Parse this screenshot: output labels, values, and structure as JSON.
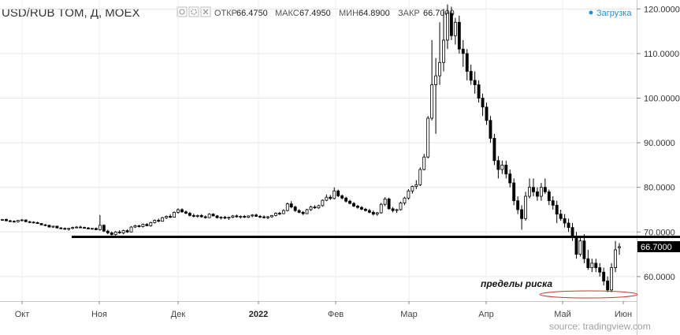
{
  "header": {
    "title": "USD/RUB TOM, Д, MOEX",
    "open_label": "ОТКР",
    "open_value": "66.4750",
    "high_label": "МАКС",
    "high_value": "67.4950",
    "low_label": "МИН",
    "low_value": "64.8900",
    "close_label": "ЗАКР",
    "close_value": "66.7000",
    "loading_text": "Загрузка",
    "icons": [
      "eye-icon",
      "settings-icon",
      "close-icon"
    ]
  },
  "annotation": {
    "text": "пределы риска"
  },
  "source_text": "source: tradingview.com",
  "colors": {
    "up": "#ffffff",
    "down": "#000000",
    "wick": "#000000",
    "risk_ellipse": "#c0392b",
    "level_line": "#000000",
    "last_price_label": "#000000"
  },
  "chart_data": {
    "type": "candlestick",
    "yticks": [
      "120.0000",
      "110.0000",
      "100.0000",
      "90.0000",
      "80.0000",
      "70.0000",
      "60.0000"
    ],
    "ylim": [
      54.5,
      122
    ],
    "xticks": [
      "Окт",
      "Ноя",
      "Дек",
      "2022",
      "Фев",
      "Мар",
      "Апр",
      "Май",
      "Июн"
    ],
    "xticks_bold": [
      "2022"
    ],
    "last_price": "66.7000",
    "support_level": 68.9,
    "risk_zone": 56,
    "series": [
      {
        "values": [
          [
            72.7,
            72.9,
            72.5,
            72.8
          ],
          [
            72.8,
            73,
            72.4,
            72.5
          ],
          [
            72.5,
            72.7,
            72.2,
            72.4
          ],
          [
            72.4,
            72.6,
            72.1,
            72.3
          ],
          [
            72.3,
            72.7,
            72.1,
            72.6
          ],
          [
            72.6,
            72.9,
            72.4,
            72.7
          ],
          [
            72.7,
            72.8,
            72.2,
            72.3
          ],
          [
            72.3,
            72.5,
            72,
            72.2
          ],
          [
            72.2,
            72.4,
            71.9,
            72.1
          ],
          [
            72.1,
            72.3,
            71.8,
            71.9
          ],
          [
            71.9,
            72,
            71.5,
            71.6
          ],
          [
            71.6,
            71.8,
            71.3,
            71.5
          ],
          [
            71.5,
            71.6,
            71,
            71.1
          ],
          [
            71.1,
            71.4,
            70.9,
            71.3
          ],
          [
            71.3,
            71.4,
            70.8,
            70.9
          ],
          [
            70.9,
            71.1,
            70.6,
            70.8
          ],
          [
            70.8,
            71,
            70.5,
            70.6
          ],
          [
            70.6,
            70.9,
            70.3,
            70.8
          ],
          [
            70.8,
            71.2,
            70.6,
            71
          ],
          [
            71,
            71.3,
            70.8,
            71.1
          ],
          [
            71.1,
            71.4,
            70.9,
            71
          ],
          [
            71,
            71.2,
            70.8,
            70.9
          ],
          [
            70.9,
            71.1,
            70.6,
            70.7
          ],
          [
            70.7,
            70.9,
            70.5,
            70.8
          ],
          [
            70.8,
            71,
            70.4,
            70.5
          ],
          [
            70.5,
            73.8,
            70.3,
            71.5
          ],
          [
            71.5,
            71.7,
            70,
            70.2
          ],
          [
            70.2,
            70.5,
            69.5,
            69.8
          ],
          [
            69.8,
            70.1,
            69.2,
            69.4
          ],
          [
            69.4,
            70.2,
            69.2,
            70
          ],
          [
            70,
            70.4,
            69.6,
            69.8
          ],
          [
            69.8,
            70.5,
            69.5,
            70.3
          ],
          [
            70.3,
            70.6,
            69.8,
            70
          ],
          [
            70,
            71.3,
            69.9,
            71.1
          ],
          [
            71.1,
            71.6,
            70.9,
            71.4
          ],
          [
            71.4,
            71.6,
            71,
            71.2
          ],
          [
            71.2,
            71.9,
            71,
            71.7
          ],
          [
            71.7,
            72,
            71.3,
            71.4
          ],
          [
            71.4,
            72.3,
            71.2,
            72.1
          ],
          [
            72.1,
            72.8,
            71.9,
            72.6
          ],
          [
            72.6,
            73,
            72.2,
            72.4
          ],
          [
            72.4,
            73.4,
            72.3,
            73.2
          ],
          [
            73.2,
            73.7,
            72.9,
            73.5
          ],
          [
            73.5,
            74,
            73.1,
            73.3
          ],
          [
            73.3,
            74.6,
            73.2,
            74.4
          ],
          [
            74.4,
            75.3,
            74.1,
            75
          ],
          [
            75,
            75.3,
            74.3,
            74.5
          ],
          [
            74.5,
            74.8,
            74,
            74.2
          ],
          [
            74.2,
            74.5,
            73.5,
            73.7
          ],
          [
            73.7,
            74.1,
            73.3,
            73.5
          ],
          [
            73.5,
            73.9,
            73.2,
            73.7
          ],
          [
            73.7,
            74,
            73.2,
            73.4
          ],
          [
            73.4,
            73.7,
            73,
            73.2
          ],
          [
            73.2,
            74.2,
            73.1,
            74
          ],
          [
            74,
            74.2,
            73.5,
            73.6
          ],
          [
            73.6,
            73.8,
            73,
            73.2
          ],
          [
            73.2,
            73.5,
            72.8,
            73.3
          ],
          [
            73.3,
            73.6,
            72.9,
            73.1
          ],
          [
            73.1,
            73.4,
            72.7,
            73.3
          ],
          [
            73.3,
            73.8,
            73.1,
            73.6
          ],
          [
            73.6,
            73.9,
            73.2,
            73.4
          ],
          [
            73.4,
            73.7,
            73,
            73.5
          ],
          [
            73.5,
            73.8,
            73.1,
            73.3
          ],
          [
            73.3,
            73.7,
            73.1,
            73.6
          ],
          [
            73.6,
            74,
            73.3,
            73.8
          ],
          [
            73.8,
            74.1,
            73.4,
            73.5
          ],
          [
            73.5,
            73.8,
            73.1,
            73.4
          ],
          [
            73.4,
            73.7,
            73,
            73.2
          ],
          [
            73.2,
            73.6,
            72.9,
            73.4
          ],
          [
            73.4,
            73.8,
            73.2,
            73.7
          ],
          [
            73.7,
            74.4,
            73.5,
            74.2
          ],
          [
            74.2,
            74.5,
            73.8,
            74.1
          ],
          [
            74.1,
            75.1,
            74,
            74.8
          ],
          [
            74.8,
            76.6,
            74.6,
            76.3
          ],
          [
            76.3,
            76.9,
            75.3,
            75.6
          ],
          [
            75.6,
            75.9,
            74.5,
            74.8
          ],
          [
            74.8,
            75.1,
            74.2,
            74.4
          ],
          [
            74.4,
            74.7,
            73.8,
            74.1
          ],
          [
            74.1,
            75.2,
            74,
            75
          ],
          [
            75,
            75.9,
            74.7,
            75.6
          ],
          [
            75.6,
            76,
            75.2,
            75.4
          ],
          [
            75.4,
            76.1,
            75.2,
            75.9
          ],
          [
            75.9,
            77.3,
            75.7,
            77.1
          ],
          [
            77.1,
            78.4,
            76.9,
            77.8
          ],
          [
            77.8,
            78.3,
            77.2,
            77.5
          ],
          [
            77.5,
            80,
            77.3,
            79.2
          ],
          [
            79.2,
            79.5,
            77.8,
            78.1
          ],
          [
            78.1,
            78.4,
            77.3,
            77.6
          ],
          [
            77.6,
            77.9,
            76.6,
            76.9
          ],
          [
            76.9,
            77.2,
            76.2,
            76.4
          ],
          [
            76.4,
            76.7,
            75.6,
            75.8
          ],
          [
            75.8,
            76.1,
            75.2,
            75.5
          ],
          [
            75.5,
            75.8,
            74.9,
            75.1
          ],
          [
            75.1,
            75.4,
            74.6,
            74.8
          ],
          [
            74.8,
            75.2,
            74.2,
            74.4
          ],
          [
            74.4,
            74.8,
            73.7,
            74
          ],
          [
            74,
            74.5,
            73.6,
            74.3
          ],
          [
            74.3,
            76.5,
            74.1,
            76.2
          ],
          [
            76.2,
            77.8,
            75.8,
            77.4
          ],
          [
            77.4,
            77.7,
            75,
            75.2
          ],
          [
            75.2,
            75.6,
            74.4,
            74.8
          ],
          [
            74.8,
            75.2,
            74.3,
            75
          ],
          [
            75,
            76.8,
            74.8,
            76.5
          ],
          [
            76.5,
            77.9,
            76,
            77.6
          ],
          [
            77.6,
            79.6,
            77.2,
            79.2
          ],
          [
            79.2,
            80.4,
            78.6,
            80.2
          ],
          [
            80.2,
            81.6,
            79.6,
            80.6
          ],
          [
            80.6,
            84.5,
            80.3,
            84
          ],
          [
            84,
            87.5,
            83.8,
            86.8
          ],
          [
            86.8,
            96,
            86.5,
            95.5
          ],
          [
            95.5,
            113,
            95,
            103
          ],
          [
            103,
            109,
            92,
            105
          ],
          [
            105,
            117,
            103,
            108
          ],
          [
            108,
            120,
            106,
            113
          ],
          [
            113,
            121,
            111,
            119
          ],
          [
            119,
            120.5,
            113,
            114
          ],
          [
            114,
            118,
            112,
            117
          ],
          [
            117,
            118.5,
            110,
            111
          ],
          [
            111,
            113,
            107,
            110
          ],
          [
            110,
            111,
            104,
            106
          ],
          [
            106,
            107.5,
            103,
            104
          ],
          [
            104,
            106,
            101,
            103
          ],
          [
            103,
            104,
            99,
            100
          ],
          [
            100,
            101,
            96,
            98
          ],
          [
            98,
            99,
            94,
            95
          ],
          [
            95,
            96,
            90,
            91
          ],
          [
            91,
            92,
            85,
            86
          ],
          [
            86,
            87,
            82,
            84
          ],
          [
            84,
            86,
            83,
            85
          ],
          [
            85,
            86,
            82,
            83
          ],
          [
            83,
            84,
            80,
            81
          ],
          [
            81,
            82,
            76,
            77
          ],
          [
            77,
            78,
            74,
            75
          ],
          [
            75,
            76,
            70.5,
            73
          ],
          [
            73,
            79,
            72.5,
            78
          ],
          [
            78,
            82,
            77.5,
            80
          ],
          [
            80,
            82,
            78,
            79
          ],
          [
            79,
            80,
            77,
            78
          ],
          [
            78,
            81,
            77,
            80
          ],
          [
            80,
            82,
            78.5,
            79
          ],
          [
            79,
            79.5,
            76,
            77
          ],
          [
            77,
            78,
            75,
            76
          ],
          [
            76,
            77,
            72,
            74
          ],
          [
            74,
            75,
            72.5,
            73
          ],
          [
            73,
            74,
            71,
            72
          ],
          [
            72,
            73,
            70,
            71
          ],
          [
            71,
            72,
            68,
            69
          ],
          [
            69,
            70,
            64,
            65
          ],
          [
            65,
            69,
            64.5,
            68
          ],
          [
            68,
            69.5,
            63,
            64
          ],
          [
            64,
            66,
            61.5,
            62
          ],
          [
            62,
            64,
            61,
            63
          ],
          [
            63,
            64,
            61,
            62
          ],
          [
            62,
            63,
            60,
            61
          ],
          [
            61,
            62,
            58,
            59
          ],
          [
            59,
            60,
            56.5,
            57
          ],
          [
            57,
            63,
            56.5,
            62
          ],
          [
            62,
            68,
            61,
            66
          ],
          [
            66.475,
            67.495,
            64.89,
            66.7
          ]
        ]
      }
    ]
  }
}
